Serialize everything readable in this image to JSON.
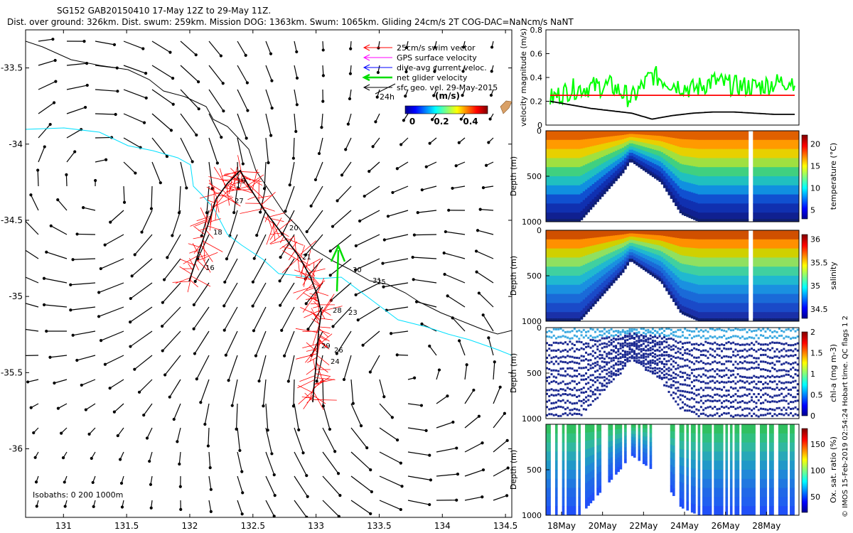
{
  "header": {
    "line1": "SG152 GAB20150410 17-May 12Z to 29-May 11Z.",
    "line2": "Dist. over ground: 326km. Dist. swum: 259km. Mission DOG: 1363km. Swum: 1065km. Gliding 24cm/s 2T COG-DAC=NaNcm/s NaNT"
  },
  "map": {
    "xlim": [
      130.7,
      134.55
    ],
    "ylim": [
      -36.45,
      -33.25
    ],
    "xticks": [
      131,
      131.5,
      132,
      132.5,
      133,
      133.5,
      134,
      134.5
    ],
    "xtick_labels": [
      "131",
      "131.5",
      "132",
      "132.5",
      "133",
      "133.5",
      "134",
      "134.5"
    ],
    "yticks": [
      -33.5,
      -34,
      -34.5,
      -35,
      -35.5,
      -36
    ],
    "ytick_labels": [
      "-33.5",
      "-34",
      "-34.5",
      "-35",
      "-35.5",
      "-36"
    ],
    "legend": [
      {
        "label": "25cm/s swim vector",
        "color": "#ff0000"
      },
      {
        "label": "GPS surface velocity",
        "color": "#ff00ff"
      },
      {
        "label": "dive-avg current veloc.",
        "color": "#0000ff"
      },
      {
        "label": "net glider velocity",
        "color": "#00dd00"
      },
      {
        "label": "sfc geo. vel. 29-May-2015",
        "color": "#000000"
      }
    ],
    "legend_24h": "24h",
    "colorbar_title": "(m/s)",
    "colorbar_ticks": [
      "0",
      "0.2",
      "0.4"
    ],
    "isobaths_text": "Isobaths: 0   200  1000m",
    "day_labels": [
      "16",
      "18",
      "19",
      "20",
      "21",
      "23",
      "24",
      "25",
      "26",
      "27",
      "28",
      "29",
      "30",
      "31"
    ],
    "colors": {
      "track": "#ff0000",
      "mean_track": "#000000",
      "isobath_200": "#00e0ff",
      "isobath_1000": "#000000",
      "net_velocity": "#00dd00"
    }
  },
  "chart_data": [
    {
      "type": "line",
      "title": "velocity magnitude",
      "ylabel": "velocity magnitude (m/s)",
      "ylim": [
        0,
        0.8
      ],
      "yticks": [
        "0",
        "0.2",
        "0.4",
        "0.6",
        "0.8"
      ],
      "x": [
        "17May",
        "18May",
        "19May",
        "20May",
        "21May",
        "22May",
        "23May",
        "24May",
        "25May",
        "26May",
        "27May",
        "28May",
        "29May"
      ],
      "series": [
        {
          "color": "#00ff00",
          "values": [
            0.22,
            0.3,
            0.32,
            0.33,
            0.22,
            0.42,
            0.35,
            0.3,
            0.37,
            0.33,
            0.32,
            0.35,
            0.38
          ]
        },
        {
          "color": "#000000",
          "values": [
            0.2,
            0.17,
            0.14,
            0.12,
            0.1,
            0.05,
            0.08,
            0.1,
            0.11,
            0.11,
            0.1,
            0.09,
            0.09
          ]
        },
        {
          "color": "#ff0000",
          "values": [
            0.25,
            0.25,
            0.25,
            0.25,
            0.25,
            0.25,
            0.25,
            0.25,
            0.25,
            0.25,
            0.25,
            0.25,
            0.25
          ]
        }
      ]
    },
    {
      "type": "heatmap",
      "ylabel": "Depth (m)",
      "ylim": [
        1000,
        0
      ],
      "yticks": [
        "0",
        "500",
        "1000"
      ],
      "colorbar_label": "temperature (°C)",
      "colorbar_range": [
        3,
        22
      ],
      "colorbar_ticks": [
        "5",
        "10",
        "15",
        "20"
      ]
    },
    {
      "type": "heatmap",
      "ylabel": "Depth (m)",
      "ylim": [
        1000,
        0
      ],
      "yticks": [
        "0",
        "500",
        "1000"
      ],
      "colorbar_label": "salinity",
      "colorbar_range": [
        34.3,
        36.1
      ],
      "colorbar_ticks": [
        "34.5",
        "35",
        "35.5",
        "36"
      ]
    },
    {
      "type": "scatter",
      "ylabel": "Depth (m)",
      "ylim": [
        1000,
        0
      ],
      "yticks": [
        "0",
        "500",
        "1000"
      ],
      "colorbar_label": "chl-a (mg m-3)",
      "colorbar_range": [
        0,
        2
      ],
      "colorbar_ticks": [
        "0",
        "0.5",
        "1",
        "1.5",
        "2"
      ]
    },
    {
      "type": "scatter",
      "ylabel": "Depth (m)",
      "ylim": [
        1000,
        0
      ],
      "yticks": [
        "500",
        "1000"
      ],
      "colorbar_label": "Ox. sat. ratio (%)",
      "colorbar_range": [
        20,
        180
      ],
      "colorbar_ticks": [
        "50",
        "100",
        "150"
      ]
    }
  ],
  "time_axis": {
    "labels": [
      "18May",
      "20May",
      "22May",
      "24May",
      "26May",
      "28May"
    ]
  },
  "side_note": "© IMOS 15-Feb-2019 02:54:24 Hobart time. QC flags 1  2"
}
